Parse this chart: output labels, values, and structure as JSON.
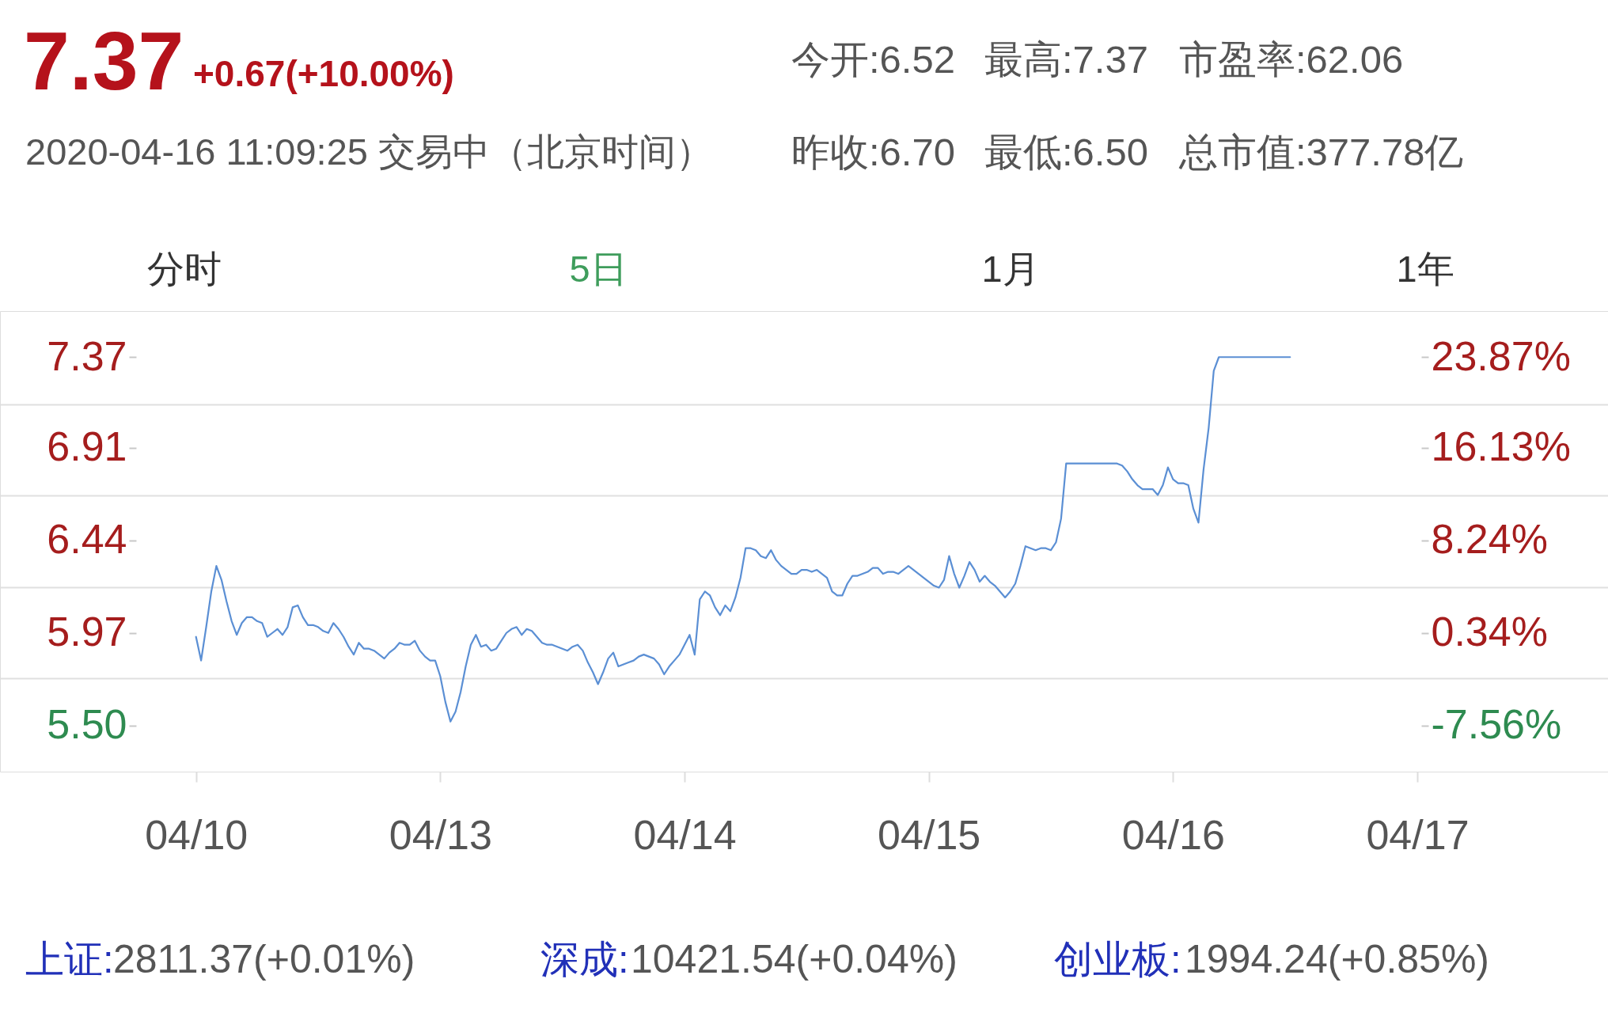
{
  "chart_data": {
    "type": "line",
    "color": "#5b8fd4",
    "categories": [
      "04/10",
      null,
      null,
      null,
      null,
      null,
      null,
      null,
      null,
      null,
      null,
      null,
      null,
      null,
      null,
      null,
      null,
      null,
      null,
      null,
      null,
      null,
      null,
      null,
      null,
      null,
      null,
      null,
      null,
      null,
      null,
      null,
      null,
      null,
      null,
      null,
      null,
      null,
      null,
      null,
      null,
      null,
      null,
      null,
      null,
      null,
      null,
      null,
      "04/13",
      null,
      null,
      null,
      null,
      null,
      null,
      null,
      null,
      null,
      null,
      null,
      null,
      null,
      null,
      null,
      null,
      null,
      null,
      null,
      null,
      null,
      null,
      null,
      null,
      null,
      null,
      null,
      null,
      null,
      null,
      null,
      null,
      null,
      null,
      null,
      null,
      null,
      null,
      null,
      null,
      null,
      null,
      null,
      null,
      null,
      null,
      null,
      "04/14",
      null,
      null,
      null,
      null,
      null,
      null,
      null,
      null,
      null,
      null,
      null,
      null,
      null,
      null,
      null,
      null,
      null,
      null,
      null,
      null,
      null,
      null,
      null,
      null,
      null,
      null,
      null,
      null,
      null,
      null,
      null,
      null,
      null,
      null,
      null,
      null,
      null,
      null,
      null,
      null,
      null,
      null,
      null,
      null,
      null,
      null,
      null,
      "04/15",
      null,
      null,
      null,
      null,
      null,
      null,
      null,
      null,
      null,
      null,
      null,
      null,
      null,
      null,
      null,
      null,
      null,
      null,
      null,
      null,
      null,
      null,
      null,
      null,
      null,
      null,
      null,
      null,
      null,
      null,
      null,
      null,
      null,
      null,
      null,
      null,
      null,
      null,
      null,
      null,
      null,
      null,
      null,
      null,
      null,
      null,
      null,
      "04/16",
      null,
      null,
      null,
      null,
      null,
      null,
      null,
      null,
      null,
      null,
      null,
      null,
      null,
      null,
      null,
      null,
      null,
      null,
      null,
      null,
      null,
      null,
      null,
      null,
      null,
      null,
      null,
      null,
      null,
      null,
      null,
      null,
      null,
      null,
      null,
      null,
      null,
      null,
      null,
      null,
      null,
      null,
      null,
      null,
      null,
      null,
      null,
      "04/17"
    ],
    "values": [
      5.95,
      5.83,
      6.0,
      6.18,
      6.31,
      6.24,
      6.13,
      6.03,
      5.96,
      6.02,
      6.05,
      6.05,
      6.03,
      6.02,
      5.95,
      5.97,
      5.99,
      5.96,
      6.0,
      6.1,
      6.11,
      6.05,
      6.01,
      6.01,
      6.0,
      5.98,
      5.97,
      6.02,
      5.99,
      5.95,
      5.9,
      5.86,
      5.92,
      5.89,
      5.89,
      5.88,
      5.86,
      5.84,
      5.87,
      5.89,
      5.92,
      5.91,
      5.91,
      5.93,
      5.88,
      5.85,
      5.83,
      5.83,
      5.75,
      5.62,
      5.52,
      5.57,
      5.67,
      5.8,
      5.91,
      5.96,
      5.9,
      5.91,
      5.88,
      5.89,
      5.93,
      5.97,
      5.99,
      6.0,
      5.96,
      5.99,
      5.98,
      5.95,
      5.92,
      5.91,
      5.91,
      5.9,
      5.89,
      5.88,
      5.9,
      5.91,
      5.88,
      5.82,
      5.77,
      5.71,
      5.77,
      5.84,
      5.87,
      5.8,
      5.81,
      5.82,
      5.83,
      5.85,
      5.86,
      5.85,
      5.84,
      5.81,
      5.76,
      5.8,
      5.83,
      5.86,
      5.91,
      5.96,
      5.86,
      6.14,
      6.18,
      6.16,
      6.1,
      6.06,
      6.11,
      6.08,
      6.15,
      6.25,
      6.4,
      6.4,
      6.39,
      6.36,
      6.35,
      6.39,
      6.34,
      6.31,
      6.29,
      6.27,
      6.27,
      6.29,
      6.29,
      6.28,
      6.29,
      6.27,
      6.25,
      6.18,
      6.16,
      6.16,
      6.22,
      6.26,
      6.26,
      6.27,
      6.28,
      6.3,
      6.3,
      6.27,
      6.28,
      6.28,
      6.27,
      6.29,
      6.31,
      6.29,
      6.27,
      6.25,
      6.23,
      6.21,
      6.2,
      6.24,
      6.36,
      6.27,
      6.2,
      6.26,
      6.33,
      6.29,
      6.23,
      6.26,
      6.23,
      6.21,
      6.18,
      6.15,
      6.18,
      6.22,
      6.31,
      6.41,
      6.4,
      6.39,
      6.4,
      6.4,
      6.39,
      6.43,
      6.55,
      6.83,
      6.83,
      6.83,
      6.83,
      6.83,
      6.83,
      6.83,
      6.83,
      6.83,
      6.83,
      6.83,
      6.82,
      6.79,
      6.75,
      6.72,
      6.7,
      6.7,
      6.7,
      6.67,
      6.72,
      6.81,
      6.75,
      6.73,
      6.73,
      6.72,
      6.6,
      6.53,
      6.8,
      7.01,
      7.3,
      7.37,
      7.37,
      7.37,
      7.37,
      7.37,
      7.37,
      7.37,
      7.37,
      7.37,
      7.37,
      7.37,
      7.37,
      7.37,
      7.37,
      7.37,
      null,
      null,
      null,
      null,
      null,
      null,
      null,
      null,
      null,
      null,
      null,
      null,
      null,
      null,
      null,
      null,
      null,
      null,
      null,
      null,
      null,
      null,
      null,
      null,
      null
    ],
    "ylim": [
      5.266,
      7.604
    ],
    "yticks": [
      7.37,
      {
        "value": 7.13,
        "label": null
      },
      6.91,
      {
        "value": 6.67,
        "label": null
      },
      6.44,
      {
        "value": 6.2,
        "label": null
      },
      5.97,
      {
        "value": 5.74,
        "label": null
      },
      {
        "value": 5.5,
        "label": "5.50"
      }
    ],
    "y2lim": [
      -11.5,
      27.8
    ],
    "y2ticks": [
      {
        "value": 23.87,
        "label": "23.87%"
      },
      {
        "value": 16.13,
        "label": "16.13%"
      },
      {
        "value": 8.24,
        "label": "8.24%"
      },
      {
        "value": 0.34,
        "label": "0.34%"
      },
      {
        "value": -7.56,
        "label": "-7.56%"
      }
    ],
    "grid": "y",
    "annotations": [
      "7.37",
      "+0.67(+10.00%)",
      "2020-04-16 11:09:25 交易中（北京时间）",
      "今开:6.52",
      "最高:7.37",
      "市盈率:62.06",
      "昨收:6.70",
      "最低:6.50",
      "总市值:377.78亿",
      "分时",
      "5日",
      "1月",
      "1年",
      "上证:",
      "2811.37(+0.01%)",
      "深成:",
      "10421.54(+0.04%)",
      "创业板:",
      "1994.24(+0.85%)"
    ]
  }
}
